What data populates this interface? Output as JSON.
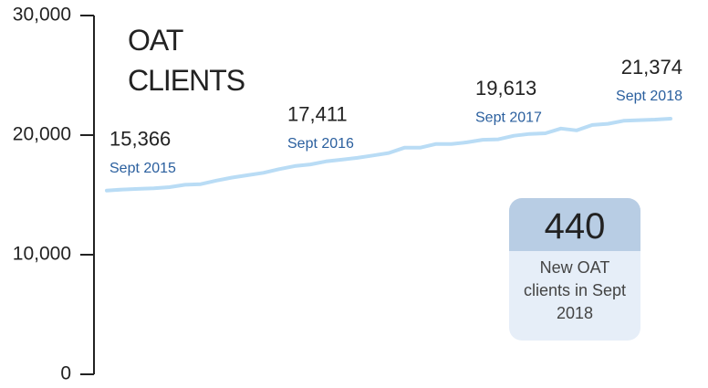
{
  "chart_data": {
    "type": "line",
    "title": "OAT CLIENTS",
    "series": [
      {
        "name": null,
        "color": "#b9dcf5",
        "values": [
          15366,
          15450,
          15500,
          15550,
          15650,
          15850,
          15900,
          16200,
          16450,
          16650,
          16850,
          17150,
          17411,
          17550,
          17800,
          17950,
          18100,
          18300,
          18500,
          18950,
          18950,
          19250,
          19250,
          19400,
          19613,
          19650,
          19950,
          20100,
          20150,
          20550,
          20400,
          20850,
          20950,
          21200,
          21250,
          21300,
          21374
        ]
      }
    ],
    "highlights": {
      "categories": [
        "Sept 2015",
        "Sept 2016",
        "Sept 2017",
        "Sept 2018"
      ],
      "values": [
        15366,
        17411,
        19613,
        21374
      ],
      "value_labels": [
        "15,366",
        "17,411",
        "19,613",
        "21,374"
      ],
      "color": "#2a5f9e"
    },
    "callout": {
      "value": 440,
      "text": "New OAT clients in Sept 2018"
    },
    "ylim": [
      0,
      30000
    ],
    "yticks": [
      0,
      {
        "value": 10000,
        "label": "10,000"
      },
      {
        "value": 20000,
        "label": "20,000"
      },
      {
        "value": 30000,
        "label": "30,000"
      }
    ]
  }
}
